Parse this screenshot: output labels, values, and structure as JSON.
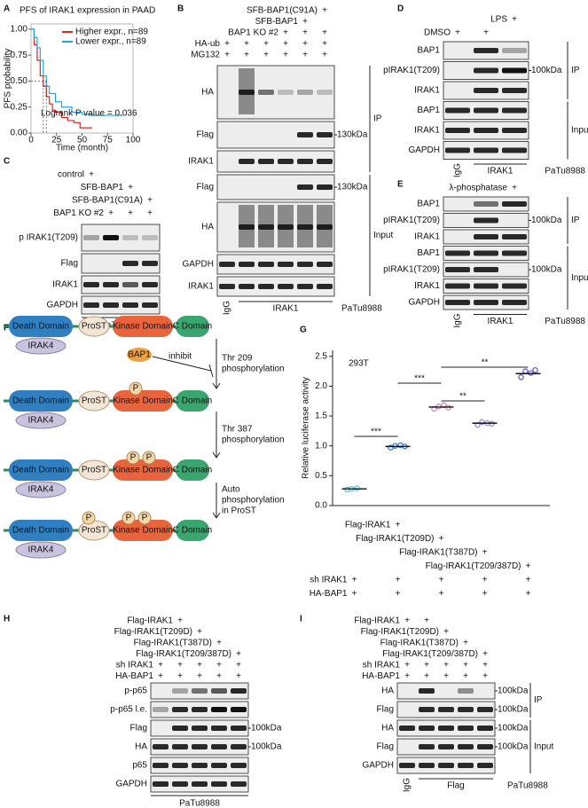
{
  "mark": "+",
  "letters": [
    "A",
    "B",
    "C",
    "D",
    "E",
    "F",
    "G",
    "H",
    "I"
  ],
  "chart_data": [
    {
      "type": "line",
      "title": "PFS of IRAK1 expression in PAAD",
      "x_label": "Time (month)",
      "y_label": "PFS probability",
      "xlim": [
        0,
        100
      ],
      "xticks": [
        0,
        25,
        50,
        75,
        100
      ],
      "ylim": [
        0,
        1.05
      ],
      "yticks": [
        {
          "value": 0,
          "label": "0.00"
        },
        {
          "value": 0.25,
          "label": "0.25"
        },
        {
          "value": 0.5,
          "label": "0.50"
        },
        {
          "value": 0.75,
          "label": "0.75"
        },
        {
          "value": 1,
          "label": "1.00"
        }
      ],
      "annotation": "Logrank P value = 0.036",
      "series": [
        {
          "name": "Higher expr., n=89",
          "color": "#d62728",
          "x": [
            0,
            3,
            6,
            9,
            12,
            15,
            18,
            21,
            24,
            30,
            36,
            42,
            48,
            60
          ],
          "values": [
            1,
            0.85,
            0.7,
            0.55,
            0.45,
            0.35,
            0.28,
            0.22,
            0.2,
            0.15,
            0.12,
            0.1,
            0.05,
            0.05
          ]
        },
        {
          "name": "Lower expr., n=89",
          "color": "#1fa8e0",
          "x": [
            0,
            3,
            6,
            9,
            12,
            15,
            18,
            24,
            30,
            40,
            50,
            60,
            70,
            90
          ],
          "values": [
            1,
            0.92,
            0.82,
            0.7,
            0.55,
            0.45,
            0.38,
            0.3,
            0.25,
            0.2,
            0.18,
            0.17,
            0.17,
            0.17
          ]
        }
      ]
    },
    {
      "type": "dot",
      "title": "293T",
      "y_label": "Relative luciferase activity",
      "ylim": [
        0,
        2.6
      ],
      "yticks": [
        {
          "value": 0,
          "label": "0.0"
        },
        {
          "value": 0.5,
          "label": "0.5"
        },
        {
          "value": 1,
          "label": "1.0"
        },
        {
          "value": 1.5,
          "label": "1.5"
        },
        {
          "value": 2,
          "label": "2.0"
        },
        {
          "value": 2.5,
          "label": "2.5"
        }
      ],
      "groups": [
        {
          "color": "#5bc0de",
          "values": [
            0.27,
            0.28,
            0.29
          ],
          "mean": 0.28
        },
        {
          "color": "#3a7bd5",
          "values": [
            0.97,
            1.0,
            1.01,
            0.99
          ],
          "mean": 0.99
        },
        {
          "color": "#c98bb9",
          "values": [
            1.62,
            1.66,
            1.68,
            1.64
          ],
          "mean": 1.65
        },
        {
          "color": "#9a8fd6",
          "values": [
            1.35,
            1.4,
            1.38,
            1.37
          ],
          "mean": 1.38
        },
        {
          "color": "#6a5acd",
          "values": [
            2.15,
            2.25,
            2.22,
            2.27
          ],
          "mean": 2.21
        }
      ],
      "significance": [
        "***",
        "***",
        "**",
        "**"
      ],
      "conditions": [
        {
          "label": "Flag-IRAK1",
          "plus": [
            1
          ]
        },
        {
          "label": "Flag-IRAK1(T209D)",
          "plus": [
            2
          ]
        },
        {
          "label": "Flag-IRAK1(T387D)",
          "plus": [
            3
          ]
        },
        {
          "label": "Flag-IRAK1(T209/387D)",
          "plus": [
            4
          ]
        },
        {
          "label": "sh IRAK1",
          "plus": [
            0,
            1,
            2,
            3,
            4
          ]
        },
        {
          "label": "HA-BAP1",
          "plus": [
            0,
            1,
            2,
            3,
            4
          ]
        }
      ]
    }
  ],
  "B": {
    "conditions": [
      {
        "label": "SFB-BAP1(C91A)",
        "plus": [
          5
        ]
      },
      {
        "label": "SFB-BAP1",
        "plus": [
          4
        ]
      },
      {
        "label": "BAP1 KO #2",
        "plus": [
          3,
          4,
          5
        ]
      },
      {
        "label": "HA-ub",
        "plus": [
          0,
          1,
          2,
          3,
          4,
          5
        ]
      },
      {
        "label": "MG132",
        "plus": [
          0,
          1,
          2,
          3,
          4,
          5
        ]
      }
    ],
    "ip_label": "IP",
    "ip": [
      {
        "label": "HA"
      },
      {
        "label": "Flag",
        "kda": "130kDa"
      },
      {
        "label": "IRAK1"
      }
    ],
    "input_label": "Input",
    "input": [
      {
        "label": "Flag",
        "kda": "130kDa"
      },
      {
        "label": "HA"
      },
      {
        "label": "GAPDH"
      },
      {
        "label": "IRAK1"
      }
    ],
    "lanes": [
      "IgG",
      "IRAK1"
    ],
    "cell": "PaTu8988"
  },
  "C": {
    "conditions": [
      {
        "label": "control",
        "plus": [
          0
        ]
      },
      {
        "label": "SFB-BAP1",
        "plus": [
          2
        ]
      },
      {
        "label": "SFB-BAP1(C91A)",
        "plus": [
          3
        ]
      },
      {
        "label": "BAP1 KO #2",
        "plus": [
          1,
          2,
          3
        ]
      }
    ],
    "rows": [
      {
        "label": "p IRAK1(T209)"
      },
      {
        "label": "Flag"
      },
      {
        "label": "IRAK1"
      },
      {
        "label": "GAPDH"
      }
    ],
    "cell": "PaTu8988"
  },
  "D": {
    "conditions": [
      {
        "label": "LPS",
        "plus": [
          2
        ]
      },
      {
        "label": "DMSO",
        "plus": [
          0,
          1
        ]
      }
    ],
    "ip_label": "IP",
    "ip": [
      {
        "label": "BAP1"
      },
      {
        "label": "pIRAK1(T209)",
        "kda": "100kDa"
      },
      {
        "label": "IRAK1"
      }
    ],
    "input_label": "Input",
    "input": [
      {
        "label": "BAP1"
      },
      {
        "label": "IRAK1"
      },
      {
        "label": "GAPDH"
      }
    ],
    "lanes": [
      "IgG",
      "IRAK1"
    ],
    "cell": "PaTu8988"
  },
  "E": {
    "conditions": [
      {
        "label": "λ-phosphatase",
        "plus": [
          2
        ]
      }
    ],
    "ip_label": "IP",
    "ip": [
      {
        "label": "BAP1"
      },
      {
        "label": "pIRAK1(T209)",
        "kda": "100kDa"
      },
      {
        "label": "IRAK1"
      }
    ],
    "input_label": "Input",
    "input": [
      {
        "label": "BAP1"
      },
      {
        "label": "pIRAK1(T209)",
        "kda": "100kDa"
      },
      {
        "label": "IRAK1"
      },
      {
        "label": "GAPDH"
      }
    ],
    "lanes": [
      "IgG",
      "IRAK1"
    ],
    "cell": "PaTu8988"
  },
  "F": {
    "domains": [
      "Death Domain",
      "ProST",
      "Kinase Domain",
      "C Domain"
    ],
    "adaptor": "IRAK4",
    "bap1": "BAP1",
    "inhibit": "inhibit",
    "p": "P",
    "steps": [
      [
        "Thr 209",
        "phosphorylation"
      ],
      [
        "Thr 387",
        "phosphorylation"
      ],
      [
        "Auto",
        "phosphorylation",
        "in ProST"
      ]
    ]
  },
  "H": {
    "conditions": [
      {
        "label": "Flag-IRAK1",
        "plus": [
          1
        ]
      },
      {
        "label": "Flag-IRAK1(T209D)",
        "plus": [
          2
        ]
      },
      {
        "label": "Flag-IRAK1(T387D)",
        "plus": [
          3
        ]
      },
      {
        "label": "Flag-IRAK1(T209/387D)",
        "plus": [
          4
        ]
      },
      {
        "label": "sh IRAK1",
        "plus": [
          0,
          1,
          2,
          3,
          4
        ]
      },
      {
        "label": "HA-BAP1",
        "plus": [
          0,
          1,
          2,
          3,
          4
        ]
      }
    ],
    "rows": [
      {
        "label": "p-p65"
      },
      {
        "label": "p-p65 l.e."
      },
      {
        "label": "Flag",
        "kda": "100kDa"
      },
      {
        "label": "HA",
        "kda": "100kDa"
      },
      {
        "label": "p65"
      },
      {
        "label": "GAPDH"
      }
    ],
    "cell": "PaTu8988"
  },
  "I": {
    "conditions": [
      {
        "label": "Flag-IRAK1",
        "plus": [
          0,
          1
        ]
      },
      {
        "label": "Flag-IRAK1(T209D)",
        "plus": [
          2
        ]
      },
      {
        "label": "Flag-IRAK1(T387D)",
        "plus": [
          3
        ]
      },
      {
        "label": "Flag-IRAK1(T209/387D)",
        "plus": [
          4
        ]
      },
      {
        "label": "sh IRAK1",
        "plus": [
          0,
          1,
          2,
          3,
          4
        ]
      },
      {
        "label": "HA-BAP1",
        "plus": [
          0,
          1,
          2,
          3,
          4
        ]
      }
    ],
    "ip_label": "IP",
    "ip": [
      {
        "label": "HA",
        "kda": "100kDa"
      },
      {
        "label": "Flag",
        "kda": "100kDa"
      }
    ],
    "input_label": "Input",
    "input": [
      {
        "label": "HA",
        "kda": "100kDa"
      },
      {
        "label": "Flag",
        "kda": "100kDa"
      },
      {
        "label": "GAPDH"
      }
    ],
    "lanes": [
      "IgG",
      "Flag"
    ],
    "cell": "PaTu8988"
  }
}
